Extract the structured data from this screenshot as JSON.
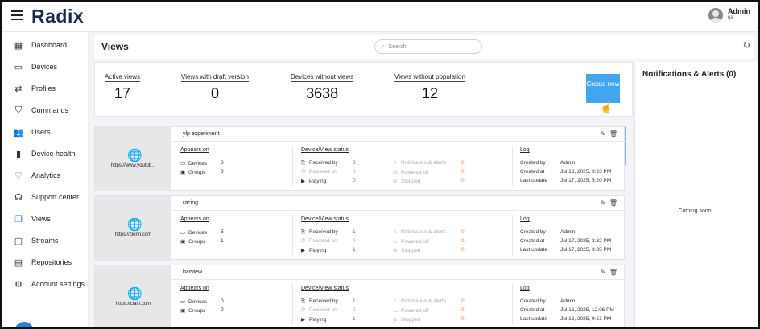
{
  "app": {
    "logo": "Radix"
  },
  "user": {
    "name": "Admin",
    "sub": "qa"
  },
  "sidebar": {
    "items": [
      {
        "label": "Dashboard",
        "icon": "dashboard-icon"
      },
      {
        "label": "Devices",
        "icon": "devices-icon"
      },
      {
        "label": "Profiles",
        "icon": "profiles-icon"
      },
      {
        "label": "Commands",
        "icon": "shield-icon"
      },
      {
        "label": "Users",
        "icon": "users-icon"
      },
      {
        "label": "Device health",
        "icon": "bar-chart-icon"
      },
      {
        "label": "Analytics",
        "icon": "pulse-icon"
      },
      {
        "label": "Support center",
        "icon": "headset-icon"
      },
      {
        "label": "Views",
        "icon": "views-icon",
        "active": true
      },
      {
        "label": "Streams",
        "icon": "streams-icon"
      },
      {
        "label": "Repositories",
        "icon": "repositories-icon"
      },
      {
        "label": "Account settings",
        "icon": "gear-icon"
      }
    ]
  },
  "header": {
    "title": "Views",
    "search_placeholder": "Search"
  },
  "stats": {
    "active_views": {
      "label": "Active views",
      "value": "17"
    },
    "draft_views": {
      "label": "Views with draft version",
      "value": "0"
    },
    "devices_without_views": {
      "label": "Devices without views",
      "value": "3638"
    },
    "views_without_population": {
      "label": "Views without population",
      "value": "12"
    },
    "create_button": "Create new"
  },
  "notifications": {
    "title": "Notifications & Alerts (0)",
    "coming_soon": "Coming soon..."
  },
  "labels": {
    "appears_on": "Appears on",
    "devices": "Devices",
    "groups": "Groups",
    "status": "Device/View status",
    "received_by": "Received by",
    "powered_on": "Powered on",
    "playing": "Playing",
    "notif_alerts": "Notification & alerts",
    "powered_off": "Powered off",
    "stopped": "Stopped",
    "log": "Log",
    "created_by": "Created by",
    "created_at": "Created at",
    "last_update": "Last update"
  },
  "cards": [
    {
      "name": "ylp experiment",
      "url": "https://www.youtub...",
      "devices": "0",
      "groups": "0",
      "received_by": "0",
      "powered_on": "0",
      "playing": "0",
      "notif_alerts": "0",
      "powered_off": "0",
      "stopped": "0",
      "created_by": "Admin",
      "created_at": "Jul 13, 2025, 3:23 PM",
      "last_update": "Jul 17, 2025, 5:20 PM"
    },
    {
      "name": "racing",
      "url": "https://clerin.com",
      "devices": "5",
      "groups": "1",
      "received_by": "1",
      "powered_on": "0",
      "playing": "1",
      "notif_alerts": "0",
      "powered_off": "0",
      "stopped": "0",
      "created_by": "Admin",
      "created_at": "Jul 17, 2025, 3:32 PM",
      "last_update": "Jul 17, 2025, 3:35 PM"
    },
    {
      "name": "barview",
      "url": "https://clain.com",
      "devices": "0",
      "groups": "0",
      "received_by": "1",
      "powered_on": "0",
      "playing": "1",
      "notif_alerts": "0",
      "powered_off": "0",
      "stopped": "0",
      "created_by": "Admin",
      "created_at": "Jul 16, 2025, 12:06 PM",
      "last_update": "Jul 16, 2025, 9:51 PM"
    }
  ]
}
